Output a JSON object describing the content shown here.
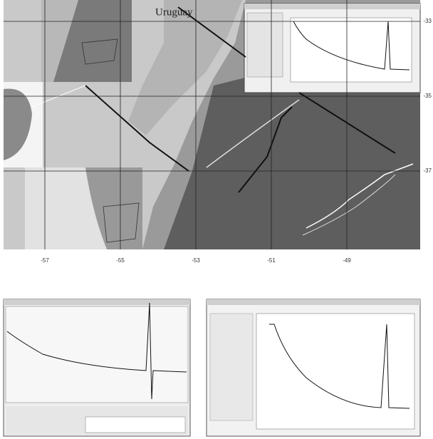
{
  "map": {
    "country_label": "Uruguay",
    "lon_ticks": [
      -57,
      -55,
      -53,
      -51,
      -49
    ],
    "lat_ticks": [
      -33,
      -35,
      -37
    ]
  }
}
